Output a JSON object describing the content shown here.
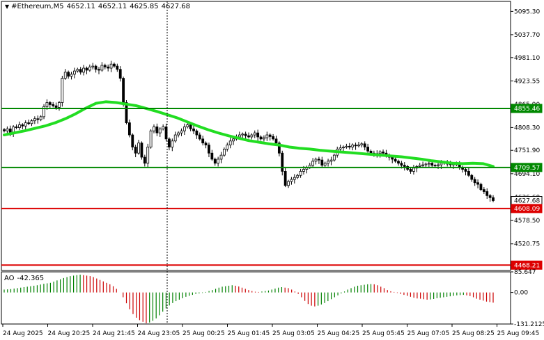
{
  "header": {
    "symbol": "#Ethereum,M5",
    "open": "4652.11",
    "high": "4652.11",
    "low": "4625.85",
    "close": "4627.68"
  },
  "ao_header": {
    "name": "AO",
    "value": "-42.365"
  },
  "colors": {
    "bull": "#000000",
    "ma": "#22dd22",
    "support_level": "#008800",
    "red_level": "#dd0000",
    "ao_up": "#008000",
    "ao_down": "#cc0000",
    "vline": "#000000"
  },
  "chart_data": [
    {
      "type": "candlestick",
      "title": "#Ethereum,M5",
      "y_ticks": [
        "5095.30",
        "5037.70",
        "4981.10",
        "4923.55",
        "4865.90",
        "4808.30",
        "4751.90",
        "4694.10",
        "4636.60",
        "4578.50",
        "4520.75",
        "4463.20"
      ],
      "ylim": [
        4455,
        5120
      ],
      "x_ticks": [
        "24 Aug 2025",
        "24 Aug 20:25",
        "24 Aug 21:45",
        "24 Aug 23:05",
        "25 Aug 00:25",
        "25 Aug 01:45",
        "25 Aug 03:05",
        "25 Aug 04:25",
        "25 Aug 05:45",
        "25 Aug 07:05",
        "25 Aug 08:25",
        "25 Aug 09:45"
      ],
      "closes": [
        4800,
        4805,
        4795,
        4810,
        4808,
        4815,
        4812,
        4820,
        4818,
        4825,
        4830,
        4828,
        4835,
        4860,
        4870,
        4865,
        4862,
        4858,
        4870,
        4930,
        4945,
        4935,
        4940,
        4948,
        4952,
        4945,
        4955,
        4950,
        4958,
        4960,
        4952,
        4950,
        4962,
        4958,
        4955,
        4965,
        4960,
        4952,
        4930,
        4870,
        4820,
        4790,
        4760,
        4745,
        4770,
        4735,
        4720,
        4760,
        4800,
        4810,
        4795,
        4805,
        4810,
        4780,
        4760,
        4775,
        4790,
        4795,
        4800,
        4810,
        4815,
        4805,
        4800,
        4790,
        4780,
        4770,
        4765,
        4745,
        4730,
        4720,
        4730,
        4740,
        4755,
        4765,
        4775,
        4780,
        4785,
        4790,
        4792,
        4788,
        4785,
        4790,
        4795,
        4785,
        4780,
        4783,
        4790,
        4786,
        4780,
        4770,
        4745,
        4700,
        4665,
        4675,
        4680,
        4685,
        4690,
        4700,
        4705,
        4710,
        4715,
        4725,
        4730,
        4728,
        4715,
        4720,
        4725,
        4728,
        4740,
        4755,
        4758,
        4760,
        4762,
        4760,
        4765,
        4763,
        4765,
        4768,
        4760,
        4750,
        4745,
        4742,
        4744,
        4748,
        4745,
        4740,
        4735,
        4730,
        4725,
        4720,
        4715,
        4712,
        4705,
        4700,
        4708,
        4712,
        4715,
        4716,
        4718,
        4720,
        4715,
        4714,
        4716,
        4720,
        4722,
        4718,
        4716,
        4718,
        4717,
        4710,
        4705,
        4700,
        4690,
        4680,
        4672,
        4668,
        4655,
        4650,
        4640,
        4635,
        4627.68
      ],
      "ma_line": [
        4790,
        4795,
        4800,
        4806,
        4812,
        4820,
        4830,
        4842,
        4856,
        4868,
        4872,
        4870,
        4866,
        4862,
        4855,
        4848,
        4840,
        4832,
        4822,
        4812,
        4803,
        4795,
        4788,
        4782,
        4776,
        4772,
        4768,
        4765,
        4760,
        4757,
        4755,
        4752,
        4750,
        4748,
        4746,
        4744,
        4742,
        4740,
        4738,
        4736,
        4733,
        4730,
        4726,
        4723,
        4720,
        4719,
        4720,
        4719,
        4712
      ],
      "levels": [
        {
          "value": 4855.46,
          "label": "4855.46",
          "kind": "support"
        },
        {
          "value": 4709.57,
          "label": "4709.57",
          "kind": "support"
        },
        {
          "value": 4627.68,
          "label": "4627.68",
          "kind": "current"
        },
        {
          "value": 4608.09,
          "label": "4608.09",
          "kind": "red"
        },
        {
          "value": 4468.21,
          "label": "4468.21",
          "kind": "red"
        }
      ]
    },
    {
      "type": "bar",
      "title": "AO",
      "y_ticks": [
        "85.647",
        "0.00",
        "-131.2125"
      ],
      "ylim": [
        -131.2125,
        85.647
      ],
      "values": [
        12,
        13,
        14,
        16,
        18,
        20,
        22,
        24,
        26,
        28,
        30,
        33,
        36,
        38,
        40,
        45,
        50,
        55,
        60,
        64,
        68,
        70,
        72,
        74,
        72,
        70,
        68,
        64,
        58,
        52,
        46,
        40,
        34,
        26,
        15,
        0,
        -20,
        -45,
        -70,
        -90,
        -105,
        -115,
        -122,
        -128,
        -125,
        -118,
        -108,
        -95,
        -80,
        -66,
        -54,
        -44,
        -36,
        -30,
        -24,
        -18,
        -14,
        -10,
        -6,
        -4,
        -2,
        2,
        6,
        10,
        15,
        20,
        24,
        26,
        28,
        30,
        28,
        25,
        20,
        15,
        10,
        6,
        3,
        2,
        4,
        6,
        8,
        12,
        16,
        20,
        22,
        20,
        18,
        12,
        4,
        -6,
        -20,
        -35,
        -48,
        -55,
        -58,
        -55,
        -50,
        -44,
        -36,
        -28,
        -20,
        -12,
        -4,
        4,
        12,
        18,
        24,
        28,
        30,
        32,
        34,
        35,
        34,
        30,
        24,
        18,
        10,
        5,
        2,
        -2,
        -6,
        -10,
        -14,
        -18,
        -22,
        -25,
        -26,
        -28,
        -30,
        -29,
        -27,
        -24,
        -22,
        -20,
        -18,
        -16,
        -14,
        -12,
        -11,
        -10,
        -12,
        -15,
        -20,
        -26,
        -30,
        -34,
        -38,
        -40,
        -42.365
      ],
      "last_label": "0.00"
    }
  ]
}
